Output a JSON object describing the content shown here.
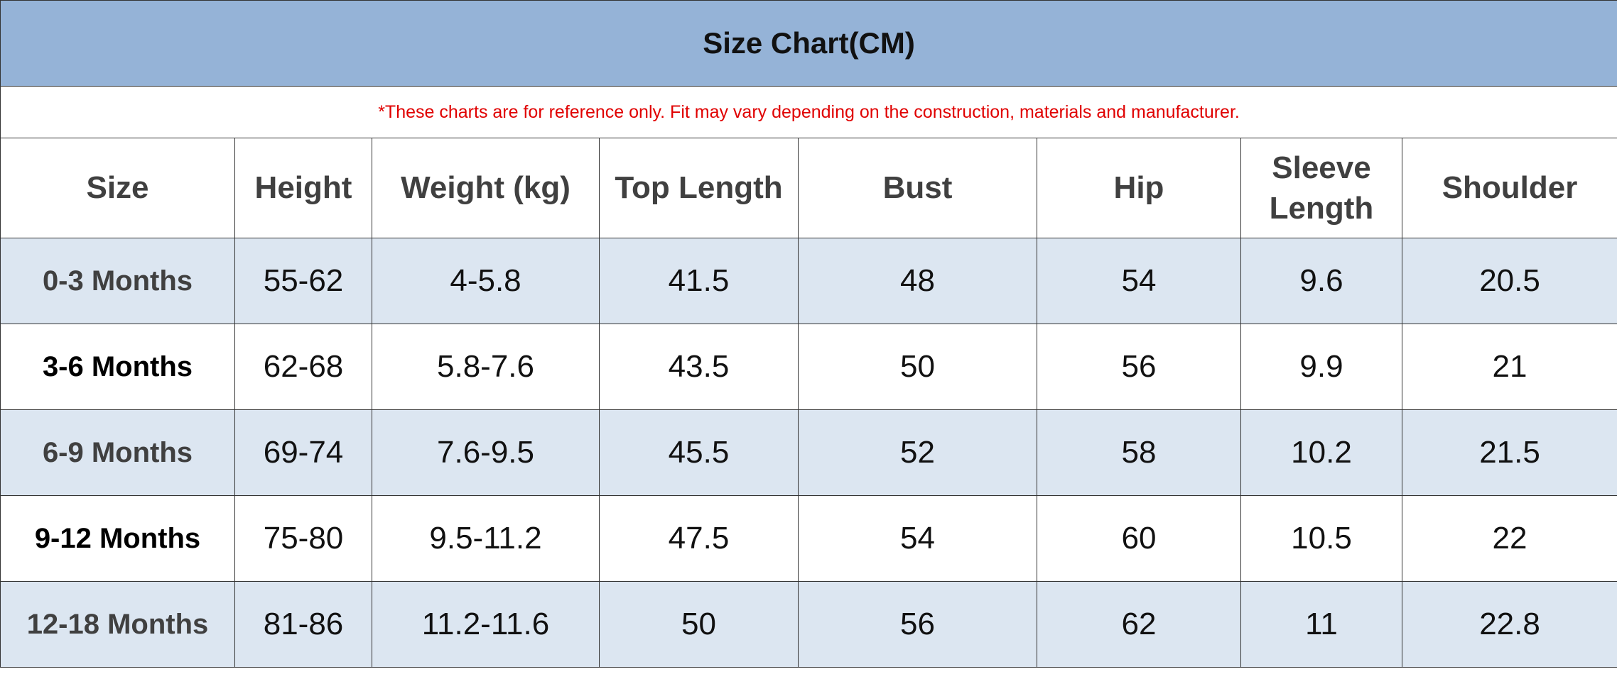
{
  "title": "Size Chart(CM)",
  "note": "*These charts are for reference only. Fit may vary depending on the construction, materials and manufacturer.",
  "table": {
    "columns": [
      "Size",
      "Height",
      "Weight (kg)",
      "Top Length",
      "Bust",
      "Hip",
      "Sleeve Length",
      "Shoulder"
    ],
    "rows": [
      [
        "0-3 Months",
        "55-62",
        "4-5.8",
        "41.5",
        "48",
        "54",
        "9.6",
        "20.5"
      ],
      [
        "3-6 Months",
        "62-68",
        "5.8-7.6",
        "43.5",
        "50",
        "56",
        "9.9",
        "21"
      ],
      [
        "6-9 Months",
        "69-74",
        "7.6-9.5",
        "45.5",
        "52",
        "58",
        "10.2",
        "21.5"
      ],
      [
        "9-12 Months",
        "75-80",
        "9.5-11.2",
        "47.5",
        "54",
        "60",
        "10.5",
        "22"
      ],
      [
        "12-18 Months",
        "81-86",
        "11.2-11.6",
        "50",
        "56",
        "62",
        "11",
        "22.8"
      ]
    ]
  }
}
